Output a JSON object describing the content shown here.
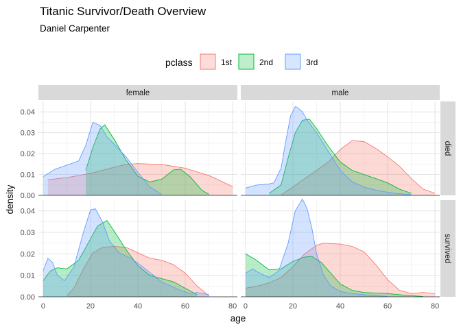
{
  "chart_data": {
    "type": "area",
    "subtype": "density",
    "title": "Titanic Survivor/Death Overview",
    "subtitle": "Daniel Carpenter",
    "xlabel": "age",
    "ylabel": "density",
    "xlim": [
      -2,
      82
    ],
    "ylim": [
      0,
      0.045
    ],
    "x_ticks": [
      0,
      20,
      40,
      60,
      80
    ],
    "y_ticks": [
      0,
      0.01,
      0.02,
      0.03,
      0.04
    ],
    "y_tick_labels": [
      "0.00",
      "0.01",
      "0.02",
      "0.03",
      "0.04"
    ],
    "grid": true,
    "legend": {
      "title": "pclass",
      "position": "top",
      "entries": [
        {
          "name": "1st",
          "fill": "#F8766D",
          "stroke": "#F8766D"
        },
        {
          "name": "2nd",
          "fill": "#00BA38",
          "stroke": "#00BA38"
        },
        {
          "name": "3rd",
          "fill": "#619CFF",
          "stroke": "#619CFF"
        }
      ]
    },
    "facet_cols": [
      "female",
      "male"
    ],
    "facet_rows": [
      "died",
      "survived"
    ],
    "facets": [
      {
        "col": "female",
        "row": "died",
        "series": [
          {
            "name": "1st",
            "x": [
              2,
              10,
              20,
              30,
              35,
              40,
              50,
              60,
              70,
              80
            ],
            "y": [
              0.0075,
              0.0085,
              0.0105,
              0.0135,
              0.0148,
              0.0152,
              0.0148,
              0.013,
              0.0095,
              0.0042
            ]
          },
          {
            "name": "2nd",
            "x": [
              18,
              21,
              24,
              26,
              30,
              35,
              40,
              45,
              50,
              55,
              58,
              62,
              67,
              70
            ],
            "y": [
              0.012,
              0.023,
              0.0318,
              0.0338,
              0.0268,
              0.017,
              0.0092,
              0.0064,
              0.0077,
              0.0122,
              0.0125,
              0.009,
              0.0025,
              0.0005
            ]
          },
          {
            "name": "3rd",
            "x": [
              0,
              5,
              10,
              15,
              18,
              21,
              24,
              27,
              30,
              35,
              40,
              45,
              50
            ],
            "y": [
              0.009,
              0.0125,
              0.0145,
              0.0165,
              0.024,
              0.035,
              0.0335,
              0.028,
              0.0245,
              0.0185,
              0.011,
              0.004,
              0.0005
            ]
          }
        ]
      },
      {
        "col": "male",
        "row": "died",
        "series": [
          {
            "name": "1st",
            "x": [
              15,
              20,
              25,
              30,
              35,
              40,
              45,
              50,
              55,
              60,
              65,
              70,
              75,
              80
            ],
            "y": [
              0.0002,
              0.004,
              0.008,
              0.012,
              0.016,
              0.022,
              0.0262,
              0.0258,
              0.0225,
              0.0185,
              0.014,
              0.008,
              0.003,
              0.001
            ]
          },
          {
            "name": "2nd",
            "x": [
              10,
              15,
              18,
              21,
              24,
              27,
              30,
              35,
              40,
              45,
              50,
              55,
              60,
              65,
              70
            ],
            "y": [
              0.001,
              0.005,
              0.018,
              0.03,
              0.036,
              0.0365,
              0.032,
              0.0235,
              0.016,
              0.012,
              0.01,
              0.008,
              0.006,
              0.003,
              0.001
            ]
          },
          {
            "name": "3rd",
            "x": [
              0,
              5,
              10,
              12,
              15,
              17,
              19,
              21,
              22,
              24,
              26,
              28,
              30,
              35,
              40,
              45,
              50,
              55,
              60,
              65,
              70
            ],
            "y": [
              0.0035,
              0.005,
              0.0055,
              0.006,
              0.013,
              0.026,
              0.038,
              0.0425,
              0.042,
              0.04,
              0.036,
              0.033,
              0.03,
              0.021,
              0.012,
              0.0065,
              0.004,
              0.0025,
              0.0015,
              0.0008,
              0.0003
            ]
          }
        ]
      },
      {
        "col": "female",
        "row": "survived",
        "series": [
          {
            "name": "1st",
            "x": [
              10,
              13,
              17,
              21,
              25,
              30,
              35,
              40,
              45,
              50,
              55,
              60,
              65,
              70
            ],
            "y": [
              0.0005,
              0.004,
              0.013,
              0.0205,
              0.023,
              0.0235,
              0.023,
              0.0205,
              0.018,
              0.017,
              0.015,
              0.011,
              0.005,
              0.0005
            ]
          },
          {
            "name": "2nd",
            "x": [
              0,
              3,
              6,
              10,
              15,
              19,
              23,
              27,
              30,
              35,
              40,
              45,
              50,
              55,
              60,
              65
            ],
            "y": [
              0.0075,
              0.012,
              0.0135,
              0.013,
              0.017,
              0.025,
              0.033,
              0.0355,
              0.0305,
              0.022,
              0.0145,
              0.01,
              0.0085,
              0.007,
              0.004,
              0.001
            ]
          },
          {
            "name": "3rd",
            "x": [
              0,
              2,
              4,
              6,
              9,
              13,
              17,
              20,
              22,
              25,
              28,
              32,
              37,
              42,
              50,
              58,
              62,
              65,
              70
            ],
            "y": [
              0.012,
              0.018,
              0.016,
              0.01,
              0.0075,
              0.014,
              0.03,
              0.0405,
              0.041,
              0.035,
              0.026,
              0.0205,
              0.018,
              0.014,
              0.007,
              0.003,
              0.0015,
              0.002,
              0.001
            ]
          }
        ]
      },
      {
        "col": "male",
        "row": "survived",
        "series": [
          {
            "name": "1st",
            "x": [
              0,
              5,
              10,
              15,
              20,
              25,
              30,
              33,
              40,
              45,
              50,
              55,
              60,
              65,
              70,
              75,
              80
            ],
            "y": [
              0.004,
              0.005,
              0.0065,
              0.009,
              0.014,
              0.02,
              0.024,
              0.025,
              0.0245,
              0.0235,
              0.021,
              0.015,
              0.008,
              0.003,
              0.0015,
              0.002,
              0.0015
            ]
          },
          {
            "name": "2nd",
            "x": [
              0,
              4,
              10,
              15,
              20,
              25,
              28,
              32,
              36,
              40,
              45,
              50,
              60,
              70,
              75
            ],
            "y": [
              0.02,
              0.0175,
              0.0125,
              0.013,
              0.0165,
              0.0185,
              0.0188,
              0.016,
              0.011,
              0.006,
              0.003,
              0.002,
              0.0015,
              0.0005,
              0.0002
            ]
          },
          {
            "name": "3rd",
            "x": [
              0,
              3,
              6,
              10,
              14,
              18,
              21,
              24,
              26,
              28,
              30,
              33,
              36,
              40,
              45,
              50,
              55,
              60
            ],
            "y": [
              0.011,
              0.013,
              0.011,
              0.009,
              0.012,
              0.025,
              0.04,
              0.0455,
              0.041,
              0.032,
              0.02,
              0.01,
              0.005,
              0.0025,
              0.0015,
              0.001,
              0.0005,
              0.0002
            ]
          }
        ]
      }
    ]
  }
}
